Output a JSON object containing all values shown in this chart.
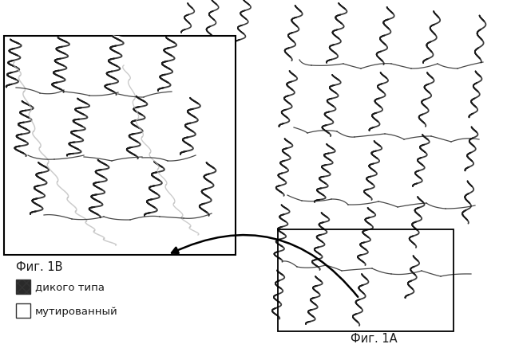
{
  "fig_title_1A": "Фиг. 1A",
  "fig_title_1B": "Фиг. 1B",
  "legend_item1_label": "дикого типа",
  "legend_item2_label": "мутированный",
  "bg_color": "#ffffff",
  "box_color": "#000000",
  "text_color": "#1a1a1a",
  "font_size_labels": 10.5,
  "legend_fontsize": 9.5
}
